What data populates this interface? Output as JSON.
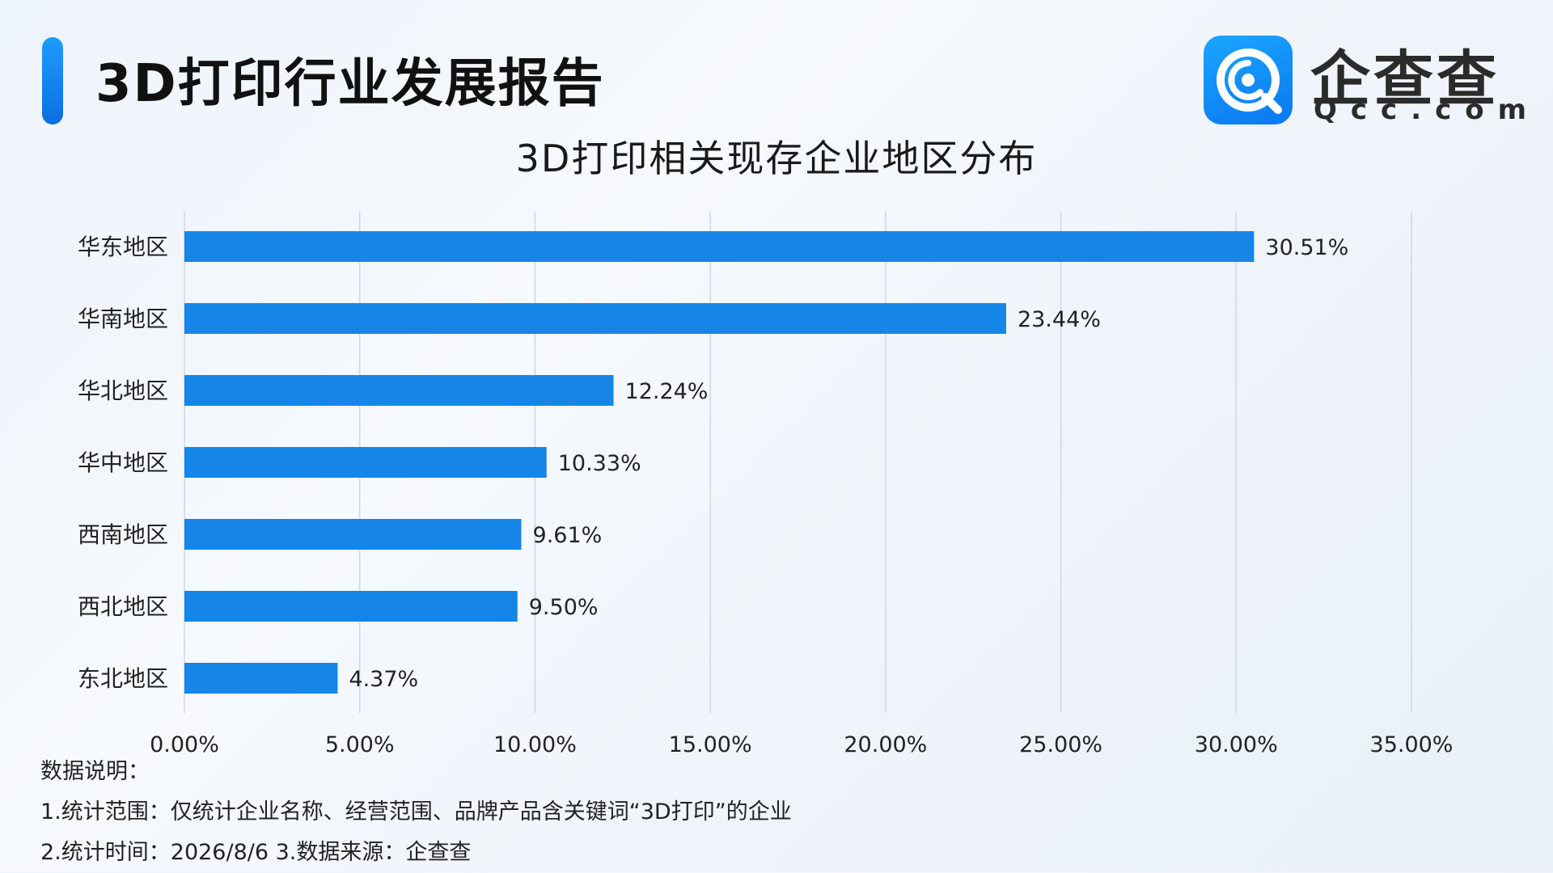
{
  "header": {
    "title": "3D打印行业发展报告",
    "brand_name": "企查查",
    "brand_domain": "Qcc.com"
  },
  "colors": {
    "accent": "#0d7fe8",
    "bar": "#1586e8",
    "grid": "#cfd6e0"
  },
  "chart_data": {
    "type": "bar",
    "orientation": "horizontal",
    "title": "3D打印相关现存企业地区分布",
    "categories": [
      "华东地区",
      "华南地区",
      "华北地区",
      "华中地区",
      "西南地区",
      "西北地区",
      "东北地区"
    ],
    "values": [
      30.51,
      23.44,
      12.24,
      10.33,
      9.61,
      9.5,
      4.37
    ],
    "data_labels": [
      "30.51%",
      "23.44%",
      "12.24%",
      "10.33%",
      "9.61%",
      "9.50%",
      "4.37%"
    ],
    "xlim": [
      0,
      35
    ],
    "x_ticks": [
      0,
      5,
      10,
      15,
      20,
      25,
      30,
      35
    ],
    "x_tick_labels": [
      "0.00%",
      "5.00%",
      "10.00%",
      "15.00%",
      "20.00%",
      "25.00%",
      "30.00%",
      "35.00%"
    ],
    "xlabel": "",
    "ylabel": "",
    "grid": "vertical",
    "legend": "none"
  },
  "notes": {
    "heading": "数据说明：",
    "line1": "1.统计范围：仅统计企业名称、经营范围、品牌产品含关键词“3D打印”的企业",
    "line2": "2.统计时间：2026/8/6  3.数据来源：企查查"
  }
}
